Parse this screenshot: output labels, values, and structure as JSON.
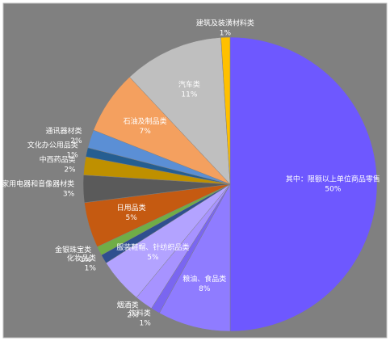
{
  "chart_data": {
    "type": "pie",
    "categories": [
      "其中：限额以上单位商品零售",
      "粮油、食品类",
      "饮料类",
      "烟酒类",
      "服装鞋帽、针纺织品类",
      "化妆品类",
      "金银珠宝类",
      "日用品类",
      "家用电器和音像器材类",
      "中西药品类",
      "文化办公用品类",
      "通讯器材类",
      "石油及制品类",
      "汽车类",
      "建筑及装潢材料类"
    ],
    "values": [
      50,
      8,
      1,
      2,
      5,
      1,
      1,
      5,
      3,
      2,
      1,
      2,
      7,
      11,
      1
    ],
    "value_labels": [
      "50%",
      "8%",
      "1%",
      "2%",
      "5%",
      "1%",
      "1%",
      "5%",
      "3%",
      "2%",
      "1%",
      "2%",
      "7%",
      "11%",
      "1%"
    ],
    "colors": [
      "#6e58ff",
      "#8f7cff",
      "#7a66f0",
      "#a793ff",
      "#b3a3ff",
      "#2f4f8f",
      "#70ad47",
      "#c55a11",
      "#5a5a5a",
      "#bf9000",
      "#255e91",
      "#5b8fd5",
      "#f4a05f",
      "#bfbfbf",
      "#ffc000"
    ]
  }
}
